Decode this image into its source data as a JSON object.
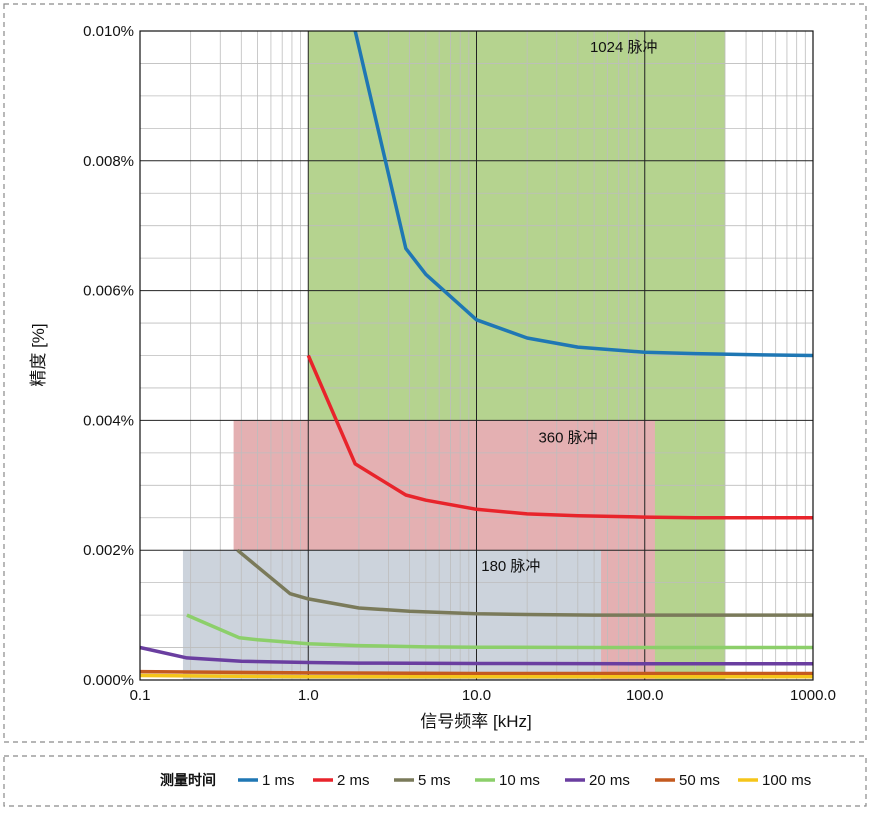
{
  "chart_data": {
    "type": "line",
    "xlabel": "信号频率 [kHz]",
    "ylabel": "精度 [%]",
    "x_scale": "log",
    "xlim": [
      0.1,
      1000
    ],
    "ylim": [
      0,
      0.01
    ],
    "grid": true,
    "x_tick_labels": [
      "0.1",
      "1.0",
      "10.0",
      "100.0",
      "1000.0"
    ],
    "y_tick_labels": [
      "0.000%",
      "0.002%",
      "0.004%",
      "0.006%",
      "0.008%",
      "0.010%"
    ],
    "regions": [
      {
        "label": "1024 脉冲",
        "x": [
          1.0,
          300
        ],
        "y_top": 0.01,
        "color": "#b5d38f"
      },
      {
        "label": "360 脉冲",
        "x": [
          0.36,
          115
        ],
        "y_top": 0.004,
        "color": "#e4b0b2"
      },
      {
        "label": "180 脉冲",
        "x": [
          0.18,
          55
        ],
        "y_top": 0.002,
        "color": "#ccd3dc"
      }
    ],
    "legend_title": "测量时间",
    "legend_position": "bottom",
    "series": [
      {
        "name": "1 ms",
        "color": "#1f77b4",
        "x": [
          1.9,
          3.8,
          5,
          10,
          20,
          40,
          100,
          200,
          500,
          1000
        ],
        "y": [
          0.01,
          0.00665,
          0.00625,
          0.00555,
          0.00527,
          0.00513,
          0.00505,
          0.00503,
          0.00501,
          0.005
        ]
      },
      {
        "name": "2 ms",
        "color": "#e8242b",
        "x": [
          1.0,
          1.9,
          3.8,
          5,
          10,
          20,
          40,
          100,
          200,
          500,
          1000
        ],
        "y": [
          0.005,
          0.00333,
          0.00285,
          0.00277,
          0.00263,
          0.00256,
          0.00253,
          0.00251,
          0.0025,
          0.0025,
          0.0025
        ]
      },
      {
        "name": "5 ms",
        "color": "#7a7a5a",
        "x": [
          0.38,
          0.78,
          1.0,
          2,
          4,
          10,
          20,
          50,
          100,
          500,
          1000
        ],
        "y": [
          0.002,
          0.00133,
          0.00125,
          0.00111,
          0.00106,
          0.00102,
          0.00101,
          0.001,
          0.001,
          0.001,
          0.001
        ]
      },
      {
        "name": "10 ms",
        "color": "#8ccf6a",
        "x": [
          0.19,
          0.39,
          0.5,
          1,
          2,
          5,
          10,
          50,
          100,
          1000
        ],
        "y": [
          0.001,
          0.00065,
          0.00062,
          0.00056,
          0.00053,
          0.00051,
          0.000505,
          0.0005,
          0.0005,
          0.0005
        ]
      },
      {
        "name": "20 ms",
        "color": "#6a3ea0",
        "x": [
          0.1,
          0.19,
          0.4,
          1,
          2,
          10,
          100,
          1000
        ],
        "y": [
          0.0005,
          0.00034,
          0.00029,
          0.00027,
          0.00026,
          0.000255,
          0.00025,
          0.00025
        ]
      },
      {
        "name": "50 ms",
        "color": "#c45a1f",
        "x": [
          0.1,
          1,
          10,
          100,
          1000
        ],
        "y": [
          0.00013,
          0.00011,
          0.0001,
          0.0001,
          0.0001
        ]
      },
      {
        "name": "100 ms",
        "color": "#f5c51a",
        "x": [
          0.1,
          1,
          10,
          100,
          1000
        ],
        "y": [
          7e-05,
          5e-05,
          5e-05,
          5e-05,
          5e-05
        ]
      }
    ]
  }
}
